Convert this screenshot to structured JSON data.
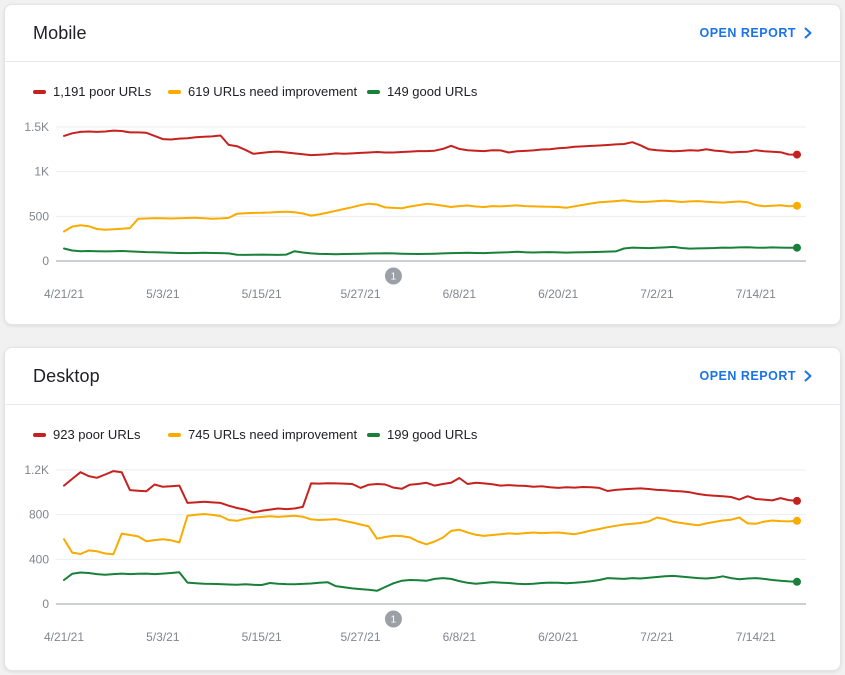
{
  "page": {
    "background": "#f1f1f1"
  },
  "colors": {
    "poor": "#c5221f",
    "need_improvement": "#f9ab00",
    "good": "#188038",
    "link": "#1a73e8",
    "axis_label": "#80868b",
    "gridline": "#ebedef",
    "baseline": "#9aa0a6",
    "annotation_badge": "#9aa0a6"
  },
  "cards": [
    {
      "title": "Mobile",
      "open_report_label": "OPEN REPORT",
      "legend": [
        {
          "label": "1,191 poor URLs",
          "color": "#c5221f"
        },
        {
          "label": "619 URLs need improvement",
          "color": "#f9ab00"
        },
        {
          "label": "149 good URLs",
          "color": "#188038"
        }
      ]
    },
    {
      "title": "Desktop",
      "open_report_label": "OPEN REPORT",
      "legend": [
        {
          "label": "923 poor URLs",
          "color": "#c5221f"
        },
        {
          "label": "745 URLs need improvement",
          "color": "#f9ab00"
        },
        {
          "label": "199 good URLs",
          "color": "#188038"
        }
      ]
    }
  ],
  "chart_data": [
    {
      "type": "line",
      "title": "Mobile",
      "x_range": [
        "4/21/21",
        "7/19/21"
      ],
      "x_tick_labels": [
        "4/21/21",
        "5/3/21",
        "5/15/21",
        "5/27/21",
        "6/8/21",
        "6/20/21",
        "7/2/21",
        "7/14/21"
      ],
      "x_tick_step": 12,
      "ylim": [
        0,
        1500
      ],
      "yticks": [
        {
          "value": 0,
          "label": "0"
        },
        {
          "value": 500,
          "label": "500"
        },
        {
          "value": 1000,
          "label": "1K"
        },
        {
          "value": 1500,
          "label": "1.5K"
        }
      ],
      "grid": "horizontal",
      "legend_position": "top",
      "annotation": {
        "label": "1",
        "x_index": 40
      },
      "series": [
        {
          "name": "poor URLs",
          "current": 1191,
          "color": "#c5221f",
          "values": [
            1400,
            1430,
            1445,
            1450,
            1445,
            1450,
            1460,
            1455,
            1440,
            1440,
            1435,
            1400,
            1365,
            1360,
            1370,
            1375,
            1385,
            1390,
            1395,
            1405,
            1300,
            1285,
            1245,
            1200,
            1210,
            1220,
            1225,
            1215,
            1205,
            1195,
            1185,
            1190,
            1195,
            1205,
            1200,
            1205,
            1210,
            1215,
            1220,
            1215,
            1215,
            1220,
            1225,
            1230,
            1230,
            1235,
            1255,
            1290,
            1255,
            1240,
            1235,
            1230,
            1240,
            1238,
            1215,
            1228,
            1232,
            1238,
            1248,
            1252,
            1262,
            1268,
            1278,
            1283,
            1288,
            1293,
            1298,
            1305,
            1310,
            1330,
            1295,
            1250,
            1240,
            1235,
            1228,
            1233,
            1240,
            1236,
            1250,
            1236,
            1228,
            1215,
            1220,
            1224,
            1240,
            1228,
            1222,
            1218,
            1192,
            1191
          ]
        },
        {
          "name": "URLs need improvement",
          "current": 619,
          "color": "#f9ab00",
          "values": [
            330,
            385,
            400,
            390,
            358,
            350,
            355,
            360,
            368,
            472,
            476,
            480,
            478,
            476,
            478,
            481,
            484,
            478,
            473,
            477,
            483,
            530,
            535,
            538,
            540,
            543,
            548,
            552,
            545,
            532,
            508,
            522,
            542,
            562,
            582,
            602,
            626,
            641,
            633,
            600,
            594,
            590,
            610,
            625,
            640,
            633,
            619,
            604,
            614,
            621,
            610,
            604,
            614,
            611,
            617,
            622,
            615,
            611,
            609,
            607,
            604,
            596,
            612,
            628,
            644,
            658,
            664,
            670,
            678,
            666,
            660,
            664,
            670,
            676,
            668,
            661,
            667,
            671,
            664,
            658,
            654,
            660,
            666,
            658,
            626,
            613,
            619,
            625,
            612,
            619
          ]
        },
        {
          "name": "good URLs",
          "current": 149,
          "color": "#188038",
          "values": [
            140,
            118,
            110,
            112,
            110,
            108,
            110,
            112,
            108,
            104,
            100,
            98,
            95,
            92,
            90,
            88,
            90,
            92,
            90,
            88,
            85,
            70,
            68,
            70,
            72,
            70,
            68,
            72,
            110,
            95,
            85,
            80,
            78,
            76,
            78,
            80,
            82,
            84,
            85,
            86,
            85,
            82,
            80,
            78,
            80,
            82,
            85,
            88,
            90,
            92,
            90,
            88,
            92,
            95,
            99,
            104,
            99,
            95,
            98,
            100,
            96,
            94,
            96,
            98,
            100,
            102,
            105,
            108,
            140,
            150,
            147,
            144,
            148,
            152,
            158,
            145,
            139,
            141,
            143,
            146,
            150,
            148,
            152,
            155,
            150,
            148,
            152,
            150,
            149,
            149
          ]
        }
      ]
    },
    {
      "type": "line",
      "title": "Desktop",
      "x_range": [
        "4/21/21",
        "7/19/21"
      ],
      "x_tick_labels": [
        "4/21/21",
        "5/3/21",
        "5/15/21",
        "5/27/21",
        "6/8/21",
        "6/20/21",
        "7/2/21",
        "7/14/21"
      ],
      "x_tick_step": 12,
      "ylim": [
        0,
        1200
      ],
      "yticks": [
        {
          "value": 0,
          "label": "0"
        },
        {
          "value": 400,
          "label": "400"
        },
        {
          "value": 800,
          "label": "800"
        },
        {
          "value": 1200,
          "label": "1.2K"
        }
      ],
      "grid": "horizontal",
      "legend_position": "top",
      "annotation": {
        "label": "1",
        "x_index": 40
      },
      "series": [
        {
          "name": "poor URLs",
          "current": 923,
          "color": "#c5221f",
          "values": [
            1060,
            1120,
            1180,
            1145,
            1130,
            1160,
            1190,
            1180,
            1020,
            1015,
            1010,
            1070,
            1050,
            1055,
            1060,
            905,
            910,
            915,
            910,
            905,
            880,
            860,
            845,
            820,
            835,
            845,
            855,
            850,
            855,
            870,
            1080,
            1078,
            1082,
            1080,
            1078,
            1075,
            1040,
            1068,
            1075,
            1070,
            1042,
            1032,
            1068,
            1075,
            1085,
            1060,
            1075,
            1085,
            1128,
            1075,
            1085,
            1080,
            1072,
            1060,
            1065,
            1060,
            1058,
            1050,
            1055,
            1045,
            1040,
            1045,
            1042,
            1048,
            1045,
            1040,
            1012,
            1022,
            1028,
            1032,
            1035,
            1030,
            1022,
            1018,
            1012,
            1008,
            1000,
            985,
            975,
            970,
            965,
            958,
            935,
            965,
            940,
            935,
            928,
            948,
            930,
            923
          ]
        },
        {
          "name": "URLs need improvement",
          "current": 745,
          "color": "#f9ab00",
          "values": [
            580,
            460,
            448,
            480,
            472,
            452,
            445,
            630,
            618,
            605,
            562,
            572,
            580,
            570,
            552,
            790,
            800,
            806,
            798,
            788,
            752,
            745,
            762,
            775,
            780,
            785,
            780,
            786,
            790,
            782,
            758,
            752,
            756,
            760,
            745,
            730,
            712,
            695,
            585,
            600,
            612,
            608,
            596,
            560,
            535,
            560,
            595,
            655,
            665,
            640,
            620,
            610,
            618,
            625,
            632,
            628,
            635,
            640,
            635,
            638,
            640,
            632,
            625,
            640,
            658,
            672,
            688,
            700,
            712,
            718,
            725,
            740,
            775,
            760,
            735,
            725,
            715,
            705,
            722,
            735,
            748,
            755,
            775,
            722,
            718,
            738,
            748,
            742,
            740,
            745
          ]
        },
        {
          "name": "good URLs",
          "current": 199,
          "color": "#188038",
          "values": [
            215,
            270,
            282,
            278,
            268,
            262,
            268,
            272,
            268,
            270,
            272,
            268,
            272,
            278,
            285,
            192,
            186,
            182,
            180,
            178,
            175,
            172,
            176,
            172,
            170,
            188,
            182,
            178,
            176,
            180,
            184,
            190,
            195,
            160,
            150,
            140,
            133,
            128,
            118,
            152,
            185,
            208,
            215,
            212,
            208,
            225,
            232,
            225,
            205,
            190,
            182,
            188,
            196,
            192,
            188,
            182,
            178,
            182,
            188,
            192,
            190,
            186,
            190,
            196,
            204,
            215,
            232,
            228,
            225,
            232,
            228,
            235,
            242,
            248,
            252,
            245,
            238,
            232,
            228,
            235,
            248,
            232,
            222,
            228,
            232,
            225,
            215,
            208,
            202,
            199
          ]
        }
      ]
    }
  ]
}
